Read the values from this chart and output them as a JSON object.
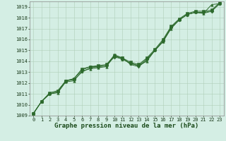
{
  "xlabel": "Graphe pression niveau de la mer (hPa)",
  "x": [
    0,
    1,
    2,
    3,
    4,
    5,
    6,
    7,
    8,
    9,
    10,
    11,
    12,
    13,
    14,
    15,
    16,
    17,
    18,
    19,
    20,
    21,
    22,
    23
  ],
  "series": [
    [
      1009.2,
      1010.3,
      1011.0,
      1011.1,
      1012.1,
      1012.2,
      1013.1,
      1013.3,
      1013.4,
      1013.5,
      1014.5,
      1014.2,
      1013.8,
      1013.6,
      1014.0,
      1015.0,
      1015.8,
      1017.0,
      1017.8,
      1018.3,
      1018.5,
      1018.4,
      1019.2,
      1019.3
    ],
    [
      1009.2,
      1010.3,
      1011.0,
      1011.2,
      1012.2,
      1012.3,
      1013.0,
      1013.4,
      1013.5,
      1013.6,
      1014.6,
      1014.3,
      1013.7,
      1013.5,
      1014.1,
      1015.0,
      1015.8,
      1017.1,
      1017.8,
      1018.3,
      1018.5,
      1018.4,
      1018.6,
      1019.3
    ],
    [
      1009.2,
      1010.3,
      1011.0,
      1011.2,
      1012.2,
      1012.4,
      1013.2,
      1013.5,
      1013.5,
      1013.6,
      1014.4,
      1014.2,
      1013.8,
      1013.6,
      1014.2,
      1015.0,
      1015.9,
      1017.1,
      1017.8,
      1018.3,
      1018.5,
      1018.5,
      1018.6,
      1019.3
    ],
    [
      1009.2,
      1010.3,
      1011.1,
      1011.3,
      1012.2,
      1012.4,
      1013.3,
      1013.5,
      1013.6,
      1013.7,
      1014.5,
      1014.3,
      1013.9,
      1013.7,
      1014.3,
      1015.1,
      1016.0,
      1017.2,
      1017.9,
      1018.4,
      1018.6,
      1018.6,
      1018.7,
      1019.4
    ]
  ],
  "markers": [
    "^",
    "v",
    "D",
    "s"
  ],
  "line_color": "#2d6a2d",
  "marker_color": "#2d6a2d",
  "bg_color": "#d4eee4",
  "grid_color": "#b0cfb8",
  "ylim": [
    1009,
    1019.5
  ],
  "yticks": [
    1009,
    1010,
    1011,
    1012,
    1013,
    1014,
    1015,
    1016,
    1017,
    1018,
    1019
  ],
  "xticks": [
    0,
    1,
    2,
    3,
    4,
    5,
    6,
    7,
    8,
    9,
    10,
    11,
    12,
    13,
    14,
    15,
    16,
    17,
    18,
    19,
    20,
    21,
    22,
    23
  ],
  "tick_fontsize": 5,
  "xlabel_fontsize": 6.5,
  "line_width": 0.7,
  "marker_size": 2.5
}
